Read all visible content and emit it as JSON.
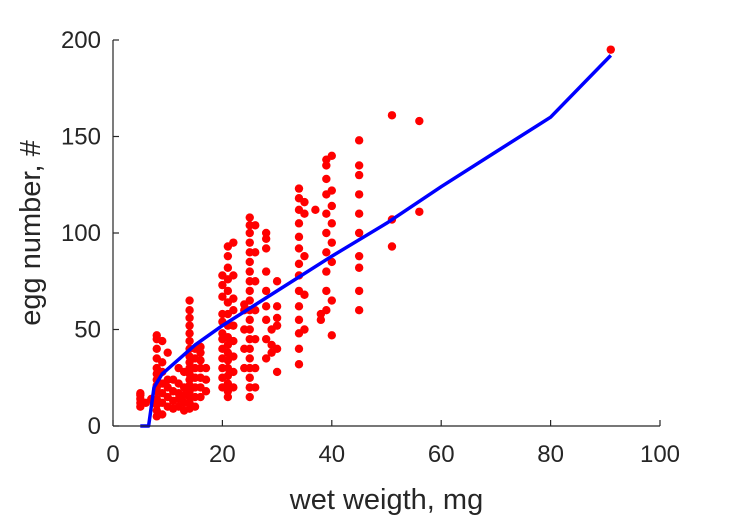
{
  "chart_data": {
    "type": "scatter",
    "xlabel": "wet weigth, mg",
    "ylabel": "egg number, #",
    "xlim": [
      0,
      100
    ],
    "ylim": [
      0,
      200
    ],
    "xticks": [
      "0",
      "20",
      "40",
      "60",
      "80",
      "100"
    ],
    "yticks": [
      "0",
      "50",
      "100",
      "150",
      "200"
    ],
    "grid": false,
    "colors": {
      "points": "#ff0000",
      "line": "#0000ff",
      "axis": "#262626"
    },
    "series": [
      {
        "type": "scatter",
        "points": [
          [
            5,
            10
          ],
          [
            5,
            12
          ],
          [
            5,
            14
          ],
          [
            5,
            16
          ],
          [
            5,
            17
          ],
          [
            6,
            12
          ],
          [
            7,
            14
          ],
          [
            8,
            5
          ],
          [
            8,
            8
          ],
          [
            8,
            11
          ],
          [
            8,
            14
          ],
          [
            8,
            18
          ],
          [
            8,
            21
          ],
          [
            8,
            24
          ],
          [
            8,
            27
          ],
          [
            8,
            30
          ],
          [
            8,
            35
          ],
          [
            8,
            40
          ],
          [
            8,
            45
          ],
          [
            8,
            47
          ],
          [
            8,
            20
          ],
          [
            9,
            6
          ],
          [
            9,
            12
          ],
          [
            9,
            17
          ],
          [
            9,
            22
          ],
          [
            9,
            28
          ],
          [
            9,
            33
          ],
          [
            9,
            44
          ],
          [
            10,
            10
          ],
          [
            10,
            15
          ],
          [
            10,
            20
          ],
          [
            10,
            24
          ],
          [
            10,
            38
          ],
          [
            11,
            9
          ],
          [
            11,
            13
          ],
          [
            11,
            18
          ],
          [
            11,
            24
          ],
          [
            12,
            10
          ],
          [
            12,
            14
          ],
          [
            12,
            17
          ],
          [
            12,
            22
          ],
          [
            12,
            30
          ],
          [
            13,
            8
          ],
          [
            13,
            12
          ],
          [
            13,
            16
          ],
          [
            13,
            20
          ],
          [
            13,
            28
          ],
          [
            14,
            9
          ],
          [
            14,
            12
          ],
          [
            14,
            15
          ],
          [
            14,
            18
          ],
          [
            14,
            21
          ],
          [
            14,
            24
          ],
          [
            14,
            27
          ],
          [
            14,
            30
          ],
          [
            14,
            33
          ],
          [
            14,
            36
          ],
          [
            14,
            40
          ],
          [
            14,
            44
          ],
          [
            14,
            48
          ],
          [
            14,
            52
          ],
          [
            14,
            56
          ],
          [
            14,
            60
          ],
          [
            14,
            65
          ],
          [
            15,
            10
          ],
          [
            15,
            15
          ],
          [
            15,
            20
          ],
          [
            15,
            25
          ],
          [
            15,
            30
          ],
          [
            15,
            35
          ],
          [
            15,
            40
          ],
          [
            16,
            15
          ],
          [
            16,
            20
          ],
          [
            16,
            25
          ],
          [
            16,
            30
          ],
          [
            16,
            34
          ],
          [
            16,
            38
          ],
          [
            16,
            41
          ],
          [
            17,
            18
          ],
          [
            17,
            24
          ],
          [
            17,
            30
          ],
          [
            20,
            20
          ],
          [
            20,
            25
          ],
          [
            20,
            30
          ],
          [
            20,
            35
          ],
          [
            20,
            40
          ],
          [
            20,
            45
          ],
          [
            20,
            48
          ],
          [
            20,
            54
          ],
          [
            20,
            58
          ],
          [
            20,
            67
          ],
          [
            20,
            73
          ],
          [
            20,
            78
          ],
          [
            21,
            15
          ],
          [
            21,
            18
          ],
          [
            21,
            22
          ],
          [
            21,
            26
          ],
          [
            21,
            30
          ],
          [
            21,
            34
          ],
          [
            21,
            38
          ],
          [
            21,
            42
          ],
          [
            21,
            46
          ],
          [
            21,
            52
          ],
          [
            21,
            58
          ],
          [
            21,
            64
          ],
          [
            21,
            70
          ],
          [
            21,
            76
          ],
          [
            21,
            82
          ],
          [
            21,
            88
          ],
          [
            21,
            93
          ],
          [
            22,
            20
          ],
          [
            22,
            28
          ],
          [
            22,
            36
          ],
          [
            22,
            44
          ],
          [
            22,
            52
          ],
          [
            22,
            60
          ],
          [
            22,
            66
          ],
          [
            22,
            78
          ],
          [
            22,
            95
          ],
          [
            24,
            30
          ],
          [
            24,
            40
          ],
          [
            24,
            50
          ],
          [
            24,
            60
          ],
          [
            24,
            63
          ],
          [
            25,
            15
          ],
          [
            25,
            20
          ],
          [
            25,
            25
          ],
          [
            25,
            30
          ],
          [
            25,
            35
          ],
          [
            25,
            40
          ],
          [
            25,
            45
          ],
          [
            25,
            50
          ],
          [
            25,
            55
          ],
          [
            25,
            60
          ],
          [
            25,
            65
          ],
          [
            25,
            70
          ],
          [
            25,
            75
          ],
          [
            25,
            80
          ],
          [
            25,
            85
          ],
          [
            25,
            90
          ],
          [
            25,
            95
          ],
          [
            25,
            100
          ],
          [
            25,
            104
          ],
          [
            25,
            108
          ],
          [
            26,
            20
          ],
          [
            26,
            30
          ],
          [
            26,
            45
          ],
          [
            26,
            60
          ],
          [
            26,
            75
          ],
          [
            26,
            90
          ],
          [
            26,
            104
          ],
          [
            28,
            35
          ],
          [
            28,
            45
          ],
          [
            28,
            55
          ],
          [
            28,
            62
          ],
          [
            28,
            70
          ],
          [
            28,
            80
          ],
          [
            28,
            92
          ],
          [
            28,
            97
          ],
          [
            28,
            100
          ],
          [
            29,
            38
          ],
          [
            29,
            42
          ],
          [
            29,
            50
          ],
          [
            30,
            28
          ],
          [
            30,
            40
          ],
          [
            30,
            52
          ],
          [
            30,
            56
          ],
          [
            30,
            62
          ],
          [
            30,
            75
          ],
          [
            34,
            32
          ],
          [
            34,
            40
          ],
          [
            34,
            48
          ],
          [
            34,
            55
          ],
          [
            34,
            62
          ],
          [
            34,
            70
          ],
          [
            34,
            78
          ],
          [
            34,
            84
          ],
          [
            34,
            92
          ],
          [
            34,
            98
          ],
          [
            34,
            105
          ],
          [
            34,
            112
          ],
          [
            34,
            118
          ],
          [
            34,
            123
          ],
          [
            35,
            50
          ],
          [
            35,
            68
          ],
          [
            35,
            88
          ],
          [
            35,
            110
          ],
          [
            35,
            116
          ],
          [
            37,
            112
          ],
          [
            38,
            55
          ],
          [
            38,
            58
          ],
          [
            39,
            60
          ],
          [
            39,
            70
          ],
          [
            39,
            80
          ],
          [
            39,
            90
          ],
          [
            39,
            100
          ],
          [
            39,
            110
          ],
          [
            39,
            120
          ],
          [
            39,
            128
          ],
          [
            39,
            135
          ],
          [
            39,
            138
          ],
          [
            40,
            47
          ],
          [
            40,
            65
          ],
          [
            40,
            85
          ],
          [
            40,
            95
          ],
          [
            40,
            105
          ],
          [
            40,
            114
          ],
          [
            40,
            122
          ],
          [
            40,
            140
          ],
          [
            45,
            60
          ],
          [
            45,
            70
          ],
          [
            45,
            82
          ],
          [
            45,
            88
          ],
          [
            45,
            100
          ],
          [
            45,
            110
          ],
          [
            45,
            120
          ],
          [
            45,
            130
          ],
          [
            45,
            135
          ],
          [
            45,
            148
          ],
          [
            51,
            93
          ],
          [
            51,
            107
          ],
          [
            51,
            161
          ],
          [
            56,
            111
          ],
          [
            56,
            158
          ],
          [
            91,
            195
          ]
        ]
      },
      {
        "type": "line",
        "points": [
          [
            5,
            0
          ],
          [
            6.5,
            0
          ],
          [
            7.5,
            20
          ],
          [
            9,
            27
          ],
          [
            15,
            42
          ],
          [
            20,
            52
          ],
          [
            30,
            70
          ],
          [
            40,
            88
          ],
          [
            50,
            105
          ],
          [
            60,
            124
          ],
          [
            70,
            142
          ],
          [
            80,
            160
          ],
          [
            91,
            192
          ]
        ]
      }
    ]
  }
}
